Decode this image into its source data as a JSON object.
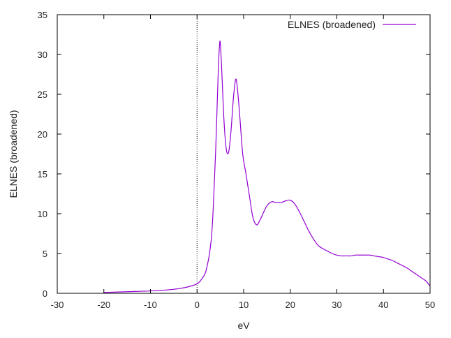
{
  "chart_data": {
    "type": "line",
    "title": "",
    "xlabel": "eV",
    "ylabel": "ELNES (broadened)",
    "xlim": [
      -30,
      50
    ],
    "ylim": [
      0,
      35
    ],
    "xticks": [
      -30,
      -20,
      -10,
      0,
      10,
      20,
      30,
      40,
      50
    ],
    "yticks": [
      0,
      5,
      10,
      15,
      20,
      25,
      30,
      35
    ],
    "xtick_labels": [
      "-30",
      "-20",
      "-10",
      "0",
      "10",
      "20",
      "30",
      "40",
      "50"
    ],
    "ytick_labels": [
      "0",
      "5",
      "10",
      "15",
      "20",
      "25",
      "30",
      "35"
    ],
    "grid": false,
    "legend_position": "top-right",
    "vertical_reference_line": {
      "x": 0,
      "style": "dotted"
    },
    "series": [
      {
        "name": "ELNES (broadened)",
        "color": "#9400d3",
        "x": [
          -20,
          -15,
          -10,
          -5,
          -2,
          0,
          1,
          2,
          3,
          3.5,
          4,
          4.5,
          4.8,
          5,
          5.3,
          5.8,
          6.3,
          6.8,
          7.3,
          7.8,
          8.3,
          8.7,
          9.2,
          9.8,
          10.5,
          11.3,
          12,
          12.8,
          13.5,
          14.3,
          15,
          16,
          17,
          18,
          19,
          20,
          21,
          22,
          23,
          24,
          25,
          26,
          27,
          28,
          29,
          30,
          31,
          32,
          33,
          34,
          35,
          36,
          37,
          38,
          39,
          40,
          41,
          42,
          43,
          44,
          45,
          46,
          47,
          48,
          49,
          49.5,
          50
        ],
        "y": [
          0.1,
          0.2,
          0.3,
          0.5,
          0.8,
          1.2,
          1.8,
          3.0,
          6.5,
          11.0,
          18.0,
          27.0,
          31.0,
          31.4,
          28.0,
          21.5,
          18.0,
          17.8,
          20.5,
          24.5,
          26.9,
          25.5,
          22.0,
          17.5,
          15.0,
          12.0,
          9.5,
          8.6,
          9.2,
          10.2,
          11.0,
          11.5,
          11.4,
          11.4,
          11.6,
          11.7,
          11.2,
          10.2,
          9.0,
          7.8,
          6.8,
          6.0,
          5.6,
          5.3,
          5.0,
          4.8,
          4.7,
          4.7,
          4.7,
          4.8,
          4.8,
          4.8,
          4.8,
          4.7,
          4.6,
          4.5,
          4.3,
          4.1,
          3.8,
          3.5,
          3.2,
          2.8,
          2.4,
          2.0,
          1.6,
          1.3,
          0.9
        ]
      }
    ]
  }
}
